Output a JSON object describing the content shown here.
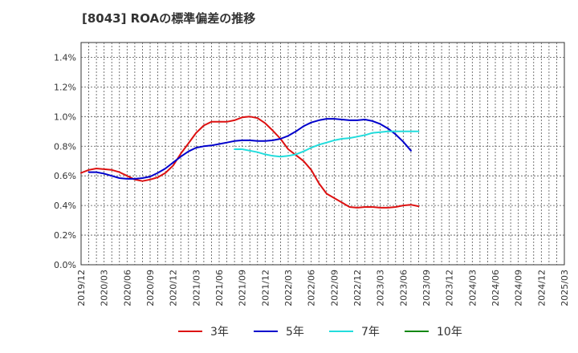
{
  "chart_data": {
    "type": "line",
    "title": "[8043]  ROAの標準偏差の推移",
    "xlabel": "",
    "ylabel": "",
    "ylim": [
      0,
      1.5
    ],
    "y_ticks": [
      "0.0%",
      "0.2%",
      "0.4%",
      "0.6%",
      "0.8%",
      "1.0%",
      "1.2%",
      "1.4%"
    ],
    "y_tick_values": [
      0,
      0.2,
      0.4,
      0.6,
      0.8,
      1.0,
      1.2,
      1.4
    ],
    "x_ticks": [
      "2019/12",
      "2020/03",
      "2020/06",
      "2020/09",
      "2020/12",
      "2021/03",
      "2021/06",
      "2021/09",
      "2021/12",
      "2022/03",
      "2022/06",
      "2022/09",
      "2022/12",
      "2023/03",
      "2023/06",
      "2023/09",
      "2023/12",
      "2024/03",
      "2024/06",
      "2024/09",
      "2024/12",
      "2025/03"
    ],
    "grid": true,
    "legend_position": "bottom",
    "series": [
      {
        "name": "3年",
        "color": "#dd1111",
        "start_index": 0,
        "values": [
          0.62,
          0.64,
          0.65,
          0.645,
          0.64,
          0.625,
          0.6,
          0.575,
          0.565,
          0.575,
          0.59,
          0.62,
          0.67,
          0.75,
          0.82,
          0.89,
          0.94,
          0.965,
          0.965,
          0.965,
          0.975,
          0.995,
          1.0,
          0.99,
          0.955,
          0.905,
          0.85,
          0.78,
          0.74,
          0.7,
          0.64,
          0.55,
          0.48,
          0.45,
          0.42,
          0.39,
          0.385,
          0.39,
          0.39,
          0.385,
          0.385,
          0.39,
          0.4,
          0.405,
          0.395
        ]
      },
      {
        "name": "5年",
        "color": "#0000cc",
        "start_index": 1,
        "values": [
          0.625,
          0.625,
          0.615,
          0.6,
          0.585,
          0.58,
          0.58,
          0.585,
          0.595,
          0.62,
          0.65,
          0.69,
          0.73,
          0.765,
          0.79,
          0.8,
          0.805,
          0.815,
          0.825,
          0.835,
          0.84,
          0.84,
          0.835,
          0.835,
          0.84,
          0.85,
          0.87,
          0.9,
          0.935,
          0.96,
          0.975,
          0.985,
          0.985,
          0.98,
          0.975,
          0.975,
          0.98,
          0.97,
          0.95,
          0.92,
          0.88,
          0.83,
          0.77
        ]
      },
      {
        "name": "7年",
        "color": "#22dddd",
        "start_index": 20,
        "values": [
          0.78,
          0.78,
          0.77,
          0.76,
          0.745,
          0.735,
          0.73,
          0.735,
          0.745,
          0.765,
          0.79,
          0.81,
          0.825,
          0.84,
          0.85,
          0.855,
          0.865,
          0.875,
          0.89,
          0.895,
          0.9,
          0.9,
          0.9,
          0.9,
          0.9
        ]
      },
      {
        "name": "10年",
        "color": "#118811",
        "start_index": 0,
        "values": []
      }
    ]
  }
}
